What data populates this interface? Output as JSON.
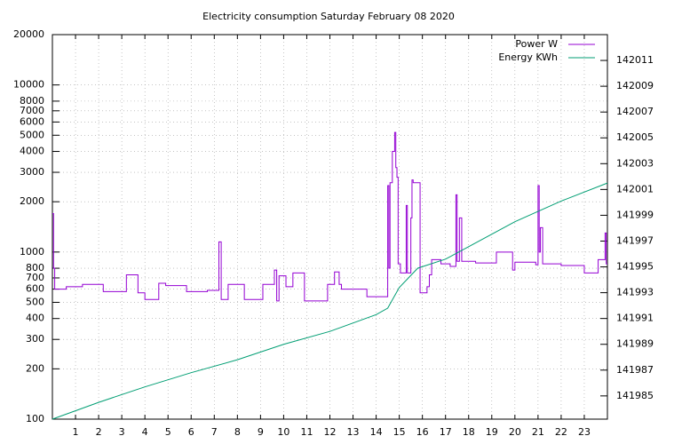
{
  "chart_data": {
    "type": "line",
    "title": "Electricity consumption Saturday February 08 2020",
    "xlim": [
      0,
      24
    ],
    "xticks": [
      1,
      2,
      3,
      4,
      5,
      6,
      7,
      8,
      9,
      10,
      11,
      12,
      13,
      14,
      15,
      16,
      17,
      18,
      19,
      20,
      21,
      22,
      23
    ],
    "ylim": [
      100,
      20000
    ],
    "yscale": "log",
    "yticks": [
      100,
      200,
      300,
      400,
      500,
      600,
      700,
      800,
      1000,
      2000,
      3000,
      4000,
      5000,
      6000,
      7000,
      8000,
      10000,
      20000
    ],
    "y2lim": [
      141983.2,
      142013.0
    ],
    "y2ticks": [
      141985,
      141987,
      141989,
      141991,
      141993,
      141995,
      141997,
      141999,
      142001,
      142003,
      142005,
      142007,
      142009,
      142011
    ],
    "grid": true,
    "legend": "top-right",
    "series": [
      {
        "name": "Power W",
        "color": "#9400d3",
        "steps": true,
        "x": [
          0,
          0.05,
          0.1,
          0.6,
          1.3,
          2.2,
          3.2,
          3.7,
          4.0,
          4.6,
          4.9,
          5.8,
          6.7,
          7.2,
          7.3,
          7.6,
          8.3,
          9.1,
          9.6,
          9.7,
          9.8,
          10.1,
          10.4,
          10.9,
          11.9,
          12.2,
          12.4,
          12.5,
          13.6,
          14.5,
          14.55,
          14.6,
          14.7,
          14.8,
          14.85,
          14.9,
          14.95,
          15.05,
          15.3,
          15.35,
          15.5,
          15.55,
          15.6,
          15.9,
          16.2,
          16.3,
          16.4,
          16.8,
          17.2,
          17.45,
          17.5,
          17.6,
          17.7,
          17.8,
          18.3,
          19.2,
          19.9,
          20.0,
          20.9,
          21.0,
          21.05,
          21.1,
          21.2,
          22.0,
          23.0,
          23.6,
          23.9,
          23.95
        ],
        "values": [
          1700,
          800,
          600,
          620,
          640,
          580,
          730,
          570,
          520,
          650,
          630,
          580,
          590,
          1150,
          520,
          640,
          520,
          640,
          780,
          510,
          720,
          620,
          750,
          510,
          640,
          760,
          640,
          600,
          540,
          2500,
          800,
          2600,
          4000,
          5200,
          3200,
          2800,
          850,
          750,
          1900,
          750,
          1600,
          2700,
          2600,
          570,
          620,
          730,
          900,
          850,
          820,
          2200,
          880,
          1600,
          880,
          880,
          860,
          1000,
          780,
          870,
          840,
          2500,
          1000,
          1400,
          850,
          830,
          750,
          900,
          1300,
          850
        ]
      },
      {
        "name": "Energy KWh",
        "color": "#009e73",
        "axis": "y2",
        "x": [
          0,
          2,
          4,
          6,
          8,
          10,
          12,
          14,
          14.5,
          15,
          15.8,
          17,
          20,
          22,
          24
        ],
        "values": [
          141983.2,
          141984.5,
          141985.7,
          141986.8,
          141987.8,
          141989.0,
          141990.0,
          141991.3,
          141991.8,
          141993.4,
          141994.9,
          141995.6,
          141998.5,
          142000.1,
          142001.5
        ]
      }
    ]
  }
}
